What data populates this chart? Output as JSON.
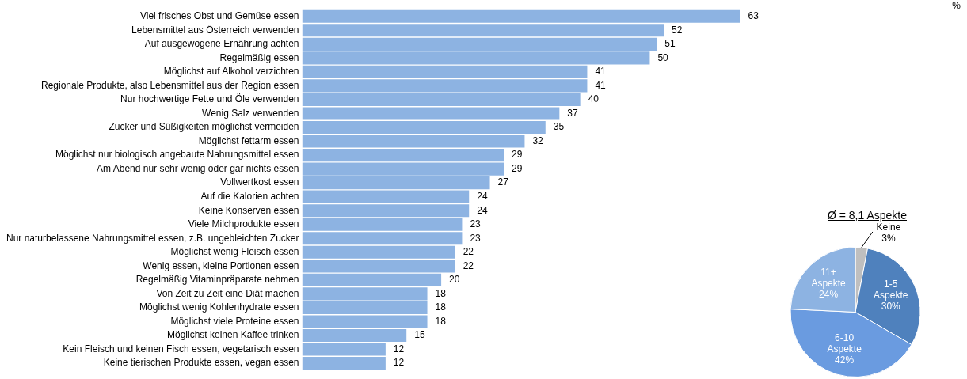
{
  "chart_data": [
    {
      "type": "bar",
      "orientation": "horizontal",
      "categories": [
        "Viel frisches Obst und Gemüse essen",
        "Lebensmittel aus Österreich verwenden",
        "Auf ausgewogene Ernährung achten",
        "Regelmäßig essen",
        "Möglichst auf Alkohol verzichten",
        "Regionale Produkte, also Lebensmittel aus der Region essen",
        "Nur hochwertige Fette und Öle verwenden",
        "Wenig Salz verwenden",
        "Zucker und Süßigkeiten möglichst vermeiden",
        "Möglichst fettarm essen",
        "Möglichst nur biologisch angebaute Nahrungsmittel essen",
        "Am Abend nur sehr wenig oder gar nichts essen",
        "Vollwertkost essen",
        "Auf die Kalorien achten",
        "Keine Konserven essen",
        "Viele Milchprodukte essen",
        "Nur naturbelassene Nahrungsmittel essen, z.B. ungebleichten Zucker",
        "Möglichst wenig Fleisch essen",
        "Wenig essen, kleine Portionen essen",
        "Regelmäßig Vitaminpräparate nehmen",
        "Von Zeit zu Zeit eine Diät machen",
        "Möglichst wenig Kohlenhydrate essen",
        "Möglichst viele Proteine essen",
        "Möglichst keinen Kaffee trinken",
        "Kein Fleisch und keinen Fisch essen, vegetarisch essen",
        "Keine tierischen Produkte essen, vegan essen"
      ],
      "values": [
        63,
        52,
        51,
        50,
        41,
        41,
        40,
        37,
        35,
        32,
        29,
        29,
        27,
        24,
        24,
        23,
        23,
        22,
        22,
        20,
        18,
        18,
        18,
        15,
        12,
        12
      ],
      "color": "#8db3e2",
      "data_labels": true,
      "tick_labels": "y",
      "grid": false,
      "legend": false,
      "annotations": [
        "%"
      ]
    },
    {
      "type": "pie",
      "title": "Ø = 8,1 Aspekte",
      "categories": [
        "Keine",
        "1-5 Aspekte",
        "6-10 Aspekte",
        "11+ Aspekte"
      ],
      "values": [
        3,
        30,
        42,
        24
      ],
      "colors": [
        "#bfbfbf",
        "#4f81bd",
        "#6a9be0",
        "#8db3e2"
      ],
      "value_labels": [
        "3%",
        "30%",
        "42%",
        "24%"
      ],
      "legend": false
    }
  ]
}
